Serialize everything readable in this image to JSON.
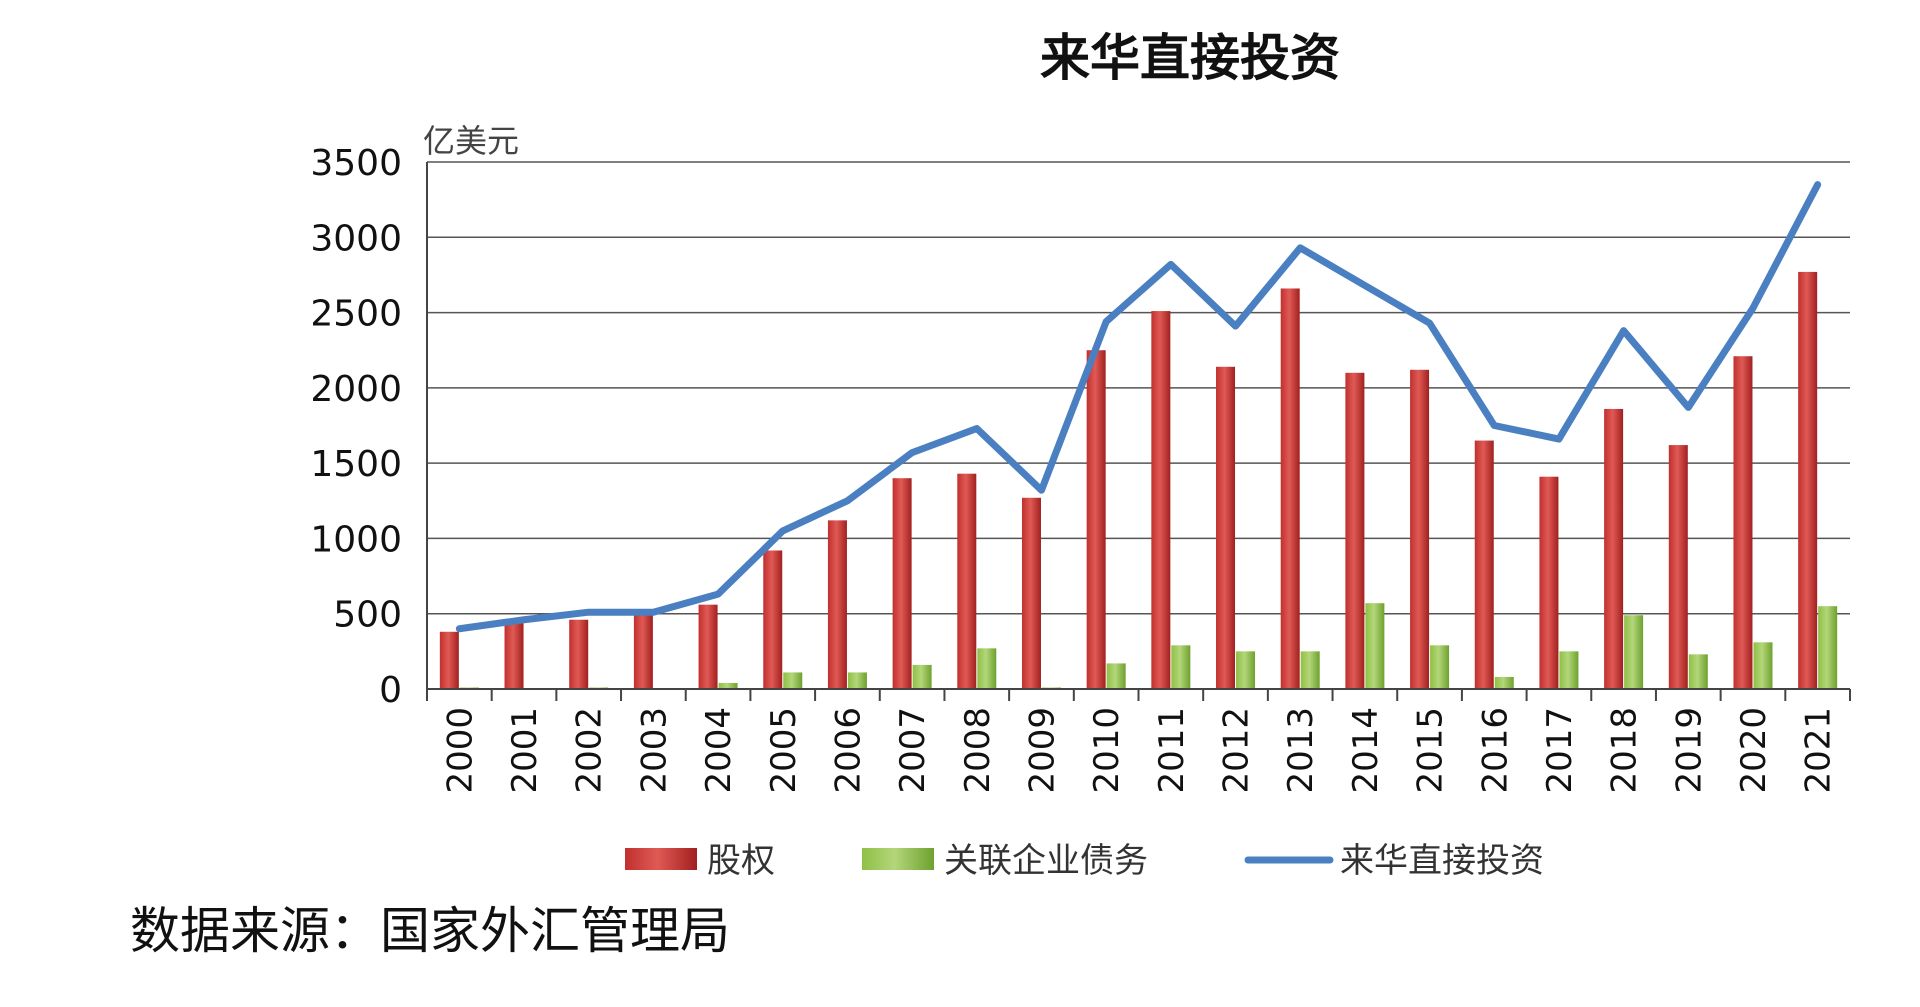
{
  "chart_data": {
    "type": "bar",
    "title": "来华直接投资",
    "ylabel": "亿美元",
    "xlabel": "",
    "ylim": [
      0,
      3500
    ],
    "yticks": [
      0,
      500,
      1000,
      1500,
      2000,
      2500,
      3000,
      3500
    ],
    "grid": true,
    "legend_position": "bottom",
    "categories": [
      "2000",
      "2001",
      "2002",
      "2003",
      "2004",
      "2005",
      "2006",
      "2007",
      "2008",
      "2009",
      "2010",
      "2011",
      "2012",
      "2013",
      "2014",
      "2015",
      "2016",
      "2017",
      "2018",
      "2019",
      "2020",
      "2021"
    ],
    "series": [
      {
        "name": "股权",
        "type": "bar",
        "color": "#c0302e",
        "values": [
          380,
          440,
          460,
          490,
          560,
          920,
          1120,
          1400,
          1430,
          1270,
          2250,
          2510,
          2140,
          2660,
          2100,
          2120,
          1650,
          1410,
          1860,
          1620,
          2210,
          2770
        ]
      },
      {
        "name": "关联企业债务",
        "type": "bar",
        "color": "#8ec045",
        "values": [
          10,
          5,
          10,
          5,
          40,
          110,
          110,
          160,
          270,
          10,
          170,
          290,
          250,
          250,
          570,
          290,
          80,
          250,
          490,
          230,
          310,
          550
        ]
      },
      {
        "name": "来华直接投资",
        "type": "line",
        "color": "#4a7fc1",
        "values": [
          400,
          460,
          510,
          510,
          630,
          1050,
          1250,
          1570,
          1730,
          1320,
          2440,
          2820,
          2410,
          2930,
          2680,
          2430,
          1750,
          1660,
          2380,
          1870,
          2530,
          3350
        ]
      }
    ]
  },
  "footer": {
    "source": "数据来源：国家外汇管理局"
  }
}
